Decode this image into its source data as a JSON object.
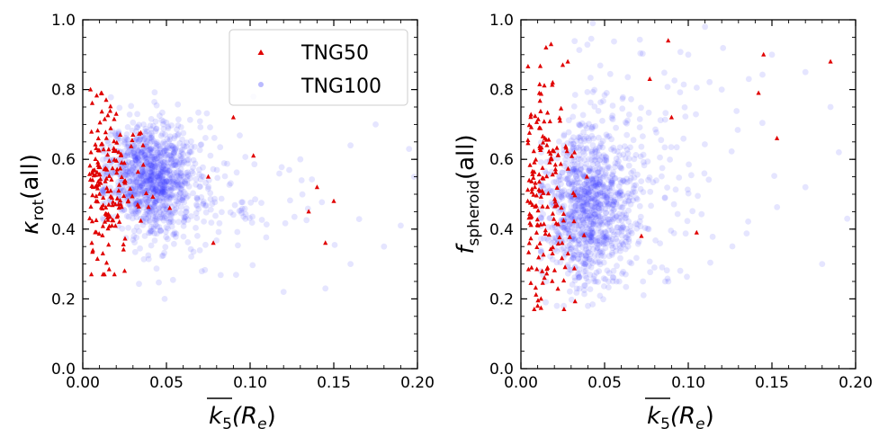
{
  "figure": {
    "legend": {
      "position": "upper-right of left panel",
      "entries": [
        {
          "label": "TNG50",
          "marker": "triangle",
          "color": "#e00000"
        },
        {
          "label": "TNG100",
          "marker": "circle",
          "color": "#3838ff"
        }
      ]
    }
  },
  "chart_data": [
    {
      "type": "scatter",
      "panel": "left",
      "title": "",
      "xlabel": "k5(Re) (overlined k, subscript 5)",
      "ylabel": "κ_rot(all)",
      "xlabel_parts": {
        "base": "k",
        "sub": "5",
        "arg": "(R",
        "argsub": "e",
        "close": ")"
      },
      "ylabel_parts": {
        "base": "κ",
        "sub": "rot",
        "rest": "(all)"
      },
      "xlim": [
        0.0,
        0.2
      ],
      "ylim": [
        0.0,
        1.0
      ],
      "xticks": [
        "0.00",
        "0.05",
        "0.10",
        "0.15",
        "0.20"
      ],
      "yticks": [
        "0.0",
        "0.2",
        "0.4",
        "0.6",
        "0.8",
        "1.0"
      ],
      "grid": false,
      "series": [
        {
          "name": "TNG50",
          "marker": "triangle",
          "color": "#e00000",
          "distribution": "x concentrated 0.005–0.04 with sparse tail to 0.15; y mean 0.52, spread 0.11",
          "highlight_points": [
            [
              0.011,
              0.79
            ],
            [
              0.014,
              0.77
            ],
            [
              0.02,
              0.73
            ],
            [
              0.03,
              0.67
            ],
            [
              0.036,
              0.64
            ],
            [
              0.09,
              0.72
            ],
            [
              0.102,
              0.61
            ],
            [
              0.075,
              0.55
            ],
            [
              0.052,
              0.46
            ],
            [
              0.14,
              0.52
            ],
            [
              0.15,
              0.48
            ],
            [
              0.145,
              0.36
            ],
            [
              0.135,
              0.45
            ],
            [
              0.078,
              0.36
            ],
            [
              0.025,
              0.28
            ],
            [
              0.012,
              0.33
            ]
          ]
        },
        {
          "name": "TNG100",
          "marker": "circle",
          "color": "#3838ff",
          "distribution": "dense cloud centered x≈0.04, y≈0.55; broad tail to x 0.2 with y 0.25–0.7",
          "highlight_points": [
            [
              0.12,
              0.22
            ],
            [
              0.145,
              0.23
            ],
            [
              0.16,
              0.3
            ],
            [
              0.18,
              0.35
            ],
            [
              0.19,
              0.41
            ],
            [
              0.198,
              0.55
            ],
            [
              0.195,
              0.63
            ],
            [
              0.175,
              0.7
            ],
            [
              0.16,
              0.64
            ],
            [
              0.13,
              0.6
            ]
          ]
        }
      ]
    },
    {
      "type": "scatter",
      "panel": "right",
      "title": "",
      "xlabel": "k5(Re) (overlined k, subscript 5)",
      "ylabel": "f_spheroid(all)",
      "xlabel_parts": {
        "base": "k",
        "sub": "5",
        "arg": "(R",
        "argsub": "e",
        "close": ")"
      },
      "ylabel_parts": {
        "base": "f",
        "sub": "spheroid",
        "rest": "(all)"
      },
      "xlim": [
        0.0,
        0.2
      ],
      "ylim": [
        0.0,
        1.0
      ],
      "xticks": [
        "0.00",
        "0.05",
        "0.10",
        "0.15",
        "0.20"
      ],
      "yticks": [
        "0.0",
        "0.2",
        "0.4",
        "0.6",
        "0.8",
        "1.0"
      ],
      "grid": false,
      "series": [
        {
          "name": "TNG50",
          "marker": "triangle",
          "color": "#e00000",
          "distribution": "x concentrated 0.005–0.035; y spread 0.18–0.95",
          "highlight_points": [
            [
              0.015,
              0.92
            ],
            [
              0.018,
              0.93
            ],
            [
              0.025,
              0.87
            ],
            [
              0.028,
              0.88
            ],
            [
              0.088,
              0.94
            ],
            [
              0.077,
              0.83
            ],
            [
              0.09,
              0.72
            ],
            [
              0.142,
              0.79
            ],
            [
              0.145,
              0.9
            ],
            [
              0.153,
              0.66
            ],
            [
              0.185,
              0.88
            ],
            [
              0.105,
              0.39
            ],
            [
              0.072,
              0.38
            ],
            [
              0.01,
              0.18
            ],
            [
              0.012,
              0.2
            ]
          ]
        },
        {
          "name": "TNG100",
          "marker": "circle",
          "color": "#3838ff",
          "distribution": "dense cloud centered x≈0.04, y≈0.45; broad tail to x 0.2 with y 0.3–0.95",
          "highlight_points": [
            [
              0.18,
              0.3
            ],
            [
              0.195,
              0.43
            ],
            [
              0.17,
              0.52
            ],
            [
              0.19,
              0.62
            ],
            [
              0.185,
              0.75
            ],
            [
              0.17,
              0.85
            ],
            [
              0.15,
              0.9
            ],
            [
              0.12,
              0.8
            ],
            [
              0.1,
              0.9
            ],
            [
              0.11,
              0.98
            ]
          ]
        }
      ]
    }
  ]
}
